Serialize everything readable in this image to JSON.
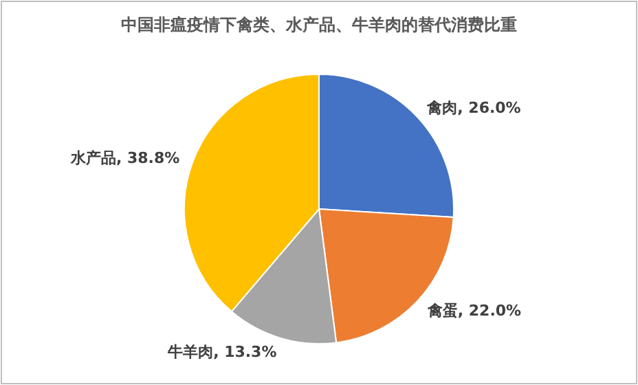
{
  "chart_data": {
    "type": "pie",
    "title": "中国非瘟疫情下禽类、水产品、牛羊肉的替代消费比重",
    "categories": [
      "禽肉",
      "禽蛋",
      "牛羊肉",
      "水产品"
    ],
    "values": [
      26.0,
      22.0,
      13.3,
      38.8
    ],
    "value_labels": [
      "26.0%",
      "22.0%",
      "13.3%",
      "38.8%"
    ],
    "colors": [
      "#4472c4",
      "#ed7d31",
      "#a5a5a5",
      "#ffc000"
    ]
  }
}
